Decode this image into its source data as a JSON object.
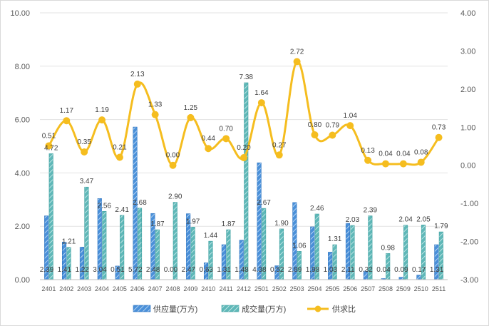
{
  "chart_data": {
    "type": "bar",
    "title": "",
    "categories": [
      "2401",
      "2402",
      "2403",
      "2404",
      "2405",
      "2406",
      "2407",
      "2408",
      "2409",
      "2410",
      "2411",
      "2412",
      "2501",
      "2502",
      "2503",
      "2504",
      "2505",
      "2506",
      "2507",
      "2508",
      "2509",
      "2510",
      "2511"
    ],
    "series": [
      {
        "name": "供应量(万方)",
        "type": "bar",
        "axis": "left",
        "color": "#4a90d9",
        "values": [
          2.39,
          1.41,
          1.22,
          3.04,
          0.51,
          5.72,
          2.48,
          0.0,
          2.47,
          0.63,
          1.31,
          1.48,
          4.38,
          0.52,
          2.89,
          1.98,
          1.03,
          2.11,
          0.32,
          0.04,
          0.09,
          0.17,
          1.31
        ],
        "labels": [
          "2.39",
          "1.41",
          "1.22",
          "3.04",
          "0.51",
          "5.72",
          "2.48",
          "0.00",
          "2.47",
          "0.63",
          "1.31",
          "1.48",
          "4.38",
          "0.52",
          "2.89",
          "1.98",
          "1.03",
          "2.11",
          "0.32",
          "0.04",
          "0.09",
          "0.17",
          "1.31"
        ]
      },
      {
        "name": "成交量(万方)",
        "type": "bar",
        "axis": "left",
        "color": "#5fb8b8",
        "values": [
          4.72,
          1.21,
          3.47,
          2.56,
          2.41,
          2.68,
          1.87,
          2.9,
          1.97,
          1.44,
          1.87,
          7.38,
          2.67,
          1.9,
          1.06,
          2.46,
          1.31,
          2.03,
          2.39,
          0.98,
          2.04,
          2.05,
          1.79
        ],
        "labels": [
          "4.72",
          "1.21",
          "3.47",
          "2.56",
          "2.41",
          "2.68",
          "1.87",
          "2.90",
          "1.97",
          "1.44",
          "1.87",
          "7.38",
          "2.67",
          "1.90",
          "1.06",
          "2.46",
          "1.31",
          "2.03",
          "2.39",
          "0.98",
          "2.04",
          "2.05",
          "1.79"
        ]
      },
      {
        "name": "供求比",
        "type": "line",
        "axis": "right",
        "color": "#f5bd1f",
        "values": [
          0.51,
          1.17,
          0.35,
          1.19,
          0.21,
          2.13,
          1.33,
          0.0,
          1.25,
          0.44,
          0.7,
          0.2,
          1.64,
          0.27,
          2.72,
          0.8,
          0.79,
          1.04,
          0.13,
          0.04,
          0.04,
          0.08,
          0.73
        ],
        "labels": [
          "0.51",
          "1.17",
          "0.35",
          "1.19",
          "0.21",
          "2.13",
          "1.33",
          "0.00",
          "1.25",
          "0.44",
          "0.70",
          "0.20",
          "1.64",
          "0.27",
          "2.72",
          "0.80",
          "0.79",
          "1.04",
          "0.13",
          "0.04",
          "0.04",
          "0.08",
          "0.73"
        ]
      }
    ],
    "y_left": {
      "min": 0,
      "max": 10,
      "step": 2,
      "tick_labels": [
        "0.00",
        "2.00",
        "4.00",
        "6.00",
        "8.00",
        "10.00"
      ]
    },
    "y_right": {
      "min": -3,
      "max": 4,
      "step": 1,
      "tick_labels": [
        "-3.00",
        "-2.00",
        "-1.00",
        "0.00",
        "1.00",
        "2.00",
        "3.00",
        "4.00"
      ]
    },
    "grid": true,
    "legend_position": "bottom"
  }
}
